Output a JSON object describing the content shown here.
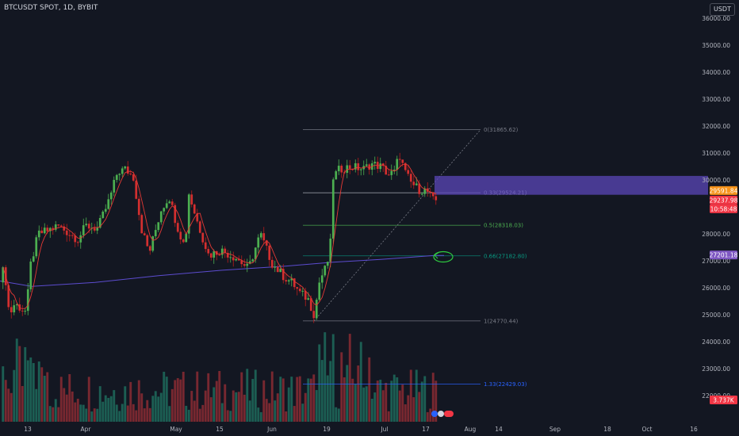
{
  "header": {
    "title": "BTCUSDT SPOT, 1D, BYBIT",
    "currency": "USDT"
  },
  "chart_data": {
    "type": "candlestick",
    "y_ticks": [
      "36000.00",
      "35000.00",
      "34000.00",
      "33000.00",
      "32000.00",
      "31000.00",
      "30000.00",
      "28000.00",
      "27000.00",
      "26000.00",
      "25000.00",
      "24000.00",
      "23000.00",
      "22000.00"
    ],
    "x_ticks": [
      "13",
      "Apr",
      "May",
      "15",
      "Jun",
      "19",
      "Jul",
      "17",
      "Aug",
      "14",
      "Sep",
      "18",
      "Oct",
      "16"
    ],
    "fib_levels": [
      {
        "label": "0(31865.62)",
        "value": 31865.62,
        "color": "#787b86"
      },
      {
        "label": "0.33(29524.21)",
        "value": 29524.21,
        "color": "#b2b5be"
      },
      {
        "label": "0.5(28318.03)",
        "value": 28318.03,
        "color": "#4caf50"
      },
      {
        "label": "0.66(27182.80)",
        "value": 27182.8,
        "color": "#089981"
      },
      {
        "label": "1(24770.44)",
        "value": 24770.44,
        "color": "#787b86"
      },
      {
        "label": "1.33(22429.03)",
        "value": 22429.03,
        "color": "#2962ff"
      }
    ],
    "price_tags": [
      {
        "text": "29591.84",
        "value": 29591.84,
        "color": "#f7931a"
      },
      {
        "text": "29237.98",
        "value": 29237.98,
        "color": "#f23645"
      },
      {
        "text": "10:58:48",
        "value": 29090,
        "color": "#f23645"
      },
      {
        "text": "27201.18",
        "value": 27201.18,
        "color": "#7e57c2"
      },
      {
        "text": "3.737K",
        "value": null,
        "color": "#f23645"
      }
    ],
    "ma_series_name": "",
    "zone": {
      "from": 29450,
      "to": 30150,
      "color": "#5b47b8"
    }
  }
}
